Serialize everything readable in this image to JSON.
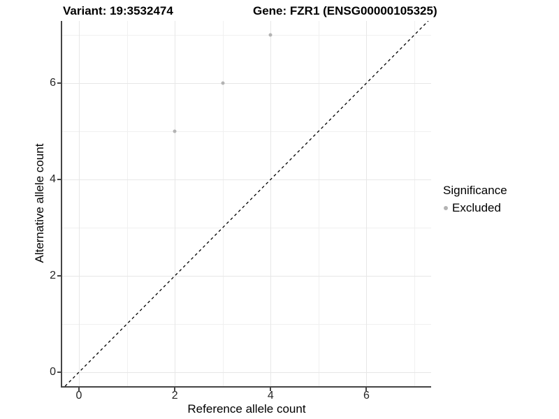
{
  "chart_data": {
    "type": "scatter",
    "titles": {
      "left": "Variant: 19:3532474",
      "right": "Gene: FZR1 (ENSG00000105325)"
    },
    "xlabel": "Reference allele count",
    "ylabel": "Alternative allele count",
    "xlim": [
      -0.35,
      7.35
    ],
    "ylim": [
      -0.29,
      7.29
    ],
    "x_ticks": [
      0,
      2,
      4,
      6
    ],
    "y_ticks": [
      0,
      2,
      4,
      6
    ],
    "x_grid_major": [
      0,
      2,
      4,
      6
    ],
    "x_grid_minor": [
      1,
      3,
      5,
      7
    ],
    "y_grid_major": [
      0,
      2,
      4,
      6
    ],
    "y_grid_minor": [
      1,
      3,
      5,
      7
    ],
    "series": [
      {
        "name": "Excluded",
        "color": "#b3b3b3",
        "marker": "circle",
        "points": [
          {
            "x": 2,
            "y": 5
          },
          {
            "x": 3,
            "y": 6
          },
          {
            "x": 4,
            "y": 7
          }
        ]
      }
    ],
    "reference_line": {
      "type": "identity",
      "slope": 1,
      "intercept": 0,
      "style": "dashed",
      "color": "#000000"
    },
    "legend": {
      "position": "right",
      "title": "Significance",
      "entries": [
        {
          "label": "Excluded",
          "color": "#b3b3b3"
        }
      ]
    }
  },
  "colors": {
    "axis_line": "#454545",
    "grid_major": "#e7e7e7",
    "grid_minor": "#f0f0f0",
    "tick_text": "#262626",
    "point": "#b3b3b3"
  }
}
